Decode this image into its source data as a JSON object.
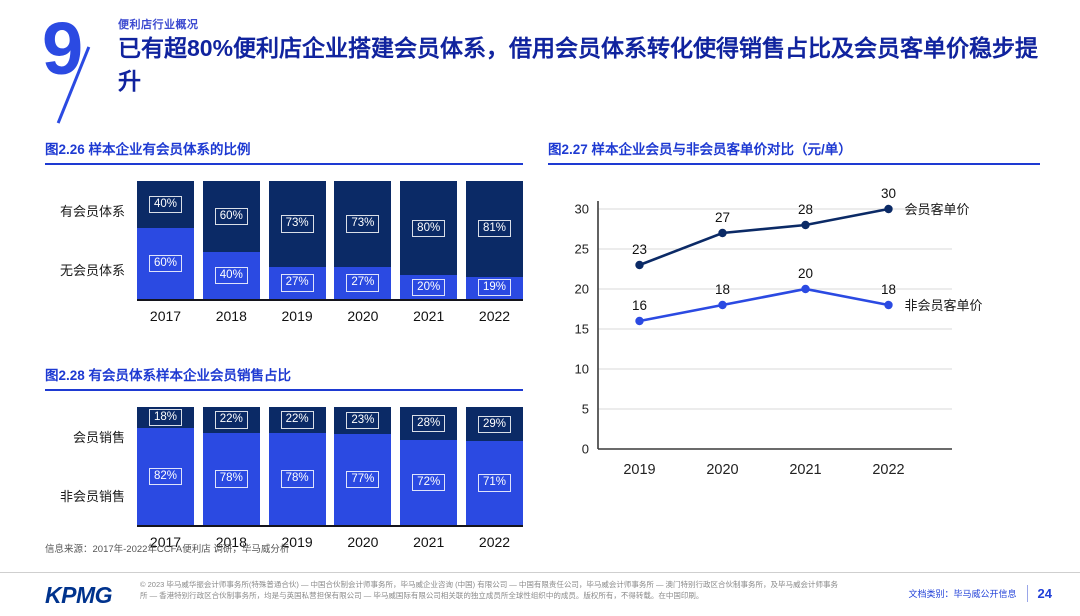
{
  "header": {
    "slide_number": "9",
    "eyebrow": "便利店行业概况",
    "title": "已有超80%便利店企业搭建会员体系，借用会员体系转化使得销售占比及会员客单价稳步提升"
  },
  "colors": {
    "dark_navy": "#0B2A66",
    "bright_blue": "#2B4AE2",
    "accent_blue": "#1E3AD2",
    "kpmg_blue": "#00338D",
    "axis": "#3a3a3a",
    "gridline": "#d9d9d9"
  },
  "chart_data": [
    {
      "type": "bar",
      "title": "图2.26 样本企业有会员体系的比例",
      "categories": [
        "2017",
        "2018",
        "2019",
        "2020",
        "2021",
        "2022"
      ],
      "series": [
        {
          "name": "有会员体系",
          "values": [
            40,
            60,
            73,
            73,
            80,
            81
          ]
        },
        {
          "name": "无会员体系",
          "values": [
            60,
            40,
            27,
            27,
            20,
            19
          ]
        }
      ],
      "value_suffix": "%",
      "stacked": true,
      "ylim": [
        0,
        100
      ]
    },
    {
      "type": "line",
      "title": "图2.27 样本企业会员与非会员客单价对比（元/单）",
      "x": [
        "2019",
        "2020",
        "2021",
        "2022"
      ],
      "series": [
        {
          "name": "会员客单价",
          "values": [
            23,
            27,
            28,
            30
          ]
        },
        {
          "name": "非会员客单价",
          "values": [
            16,
            18,
            20,
            18
          ]
        }
      ],
      "ylim": [
        0,
        30
      ],
      "yticks": [
        0,
        5,
        10,
        15,
        20,
        25,
        30
      ],
      "grid": true,
      "legend_position": "right-of-line-ends"
    },
    {
      "type": "bar",
      "title": "图2.28 有会员体系样本企业会员销售占比",
      "categories": [
        "2017",
        "2018",
        "2019",
        "2020",
        "2021",
        "2022"
      ],
      "series": [
        {
          "name": "会员销售",
          "values": [
            18,
            22,
            22,
            23,
            28,
            29
          ]
        },
        {
          "name": "非会员销售",
          "values": [
            82,
            78,
            78,
            77,
            72,
            71
          ]
        }
      ],
      "value_suffix": "%",
      "stacked": true,
      "ylim": [
        0,
        100
      ]
    }
  ],
  "source": "信息来源：2017年-2022年CCFA便利店 调研，毕马威分析",
  "footer": {
    "logo": "KPMG",
    "legal": "© 2023 毕马威华振会计师事务所(特殊普通合伙) — 中国合伙制会计师事务所，毕马威企业咨询 (中国) 有限公司 — 中国有限责任公司，毕马威会计师事务所 — 澳门特别行政区合伙制事务所，及毕马威会计师事务所 — 香港特别行政区合伙制事务所，均是与英国私营担保有限公司 — 毕马威国际有限公司相关联的独立成员所全球性组织中的成员。版权所有，不得转载。在中国印刷。",
    "doc_class": "文档类别：毕马威公开信息",
    "page_number": "24"
  }
}
